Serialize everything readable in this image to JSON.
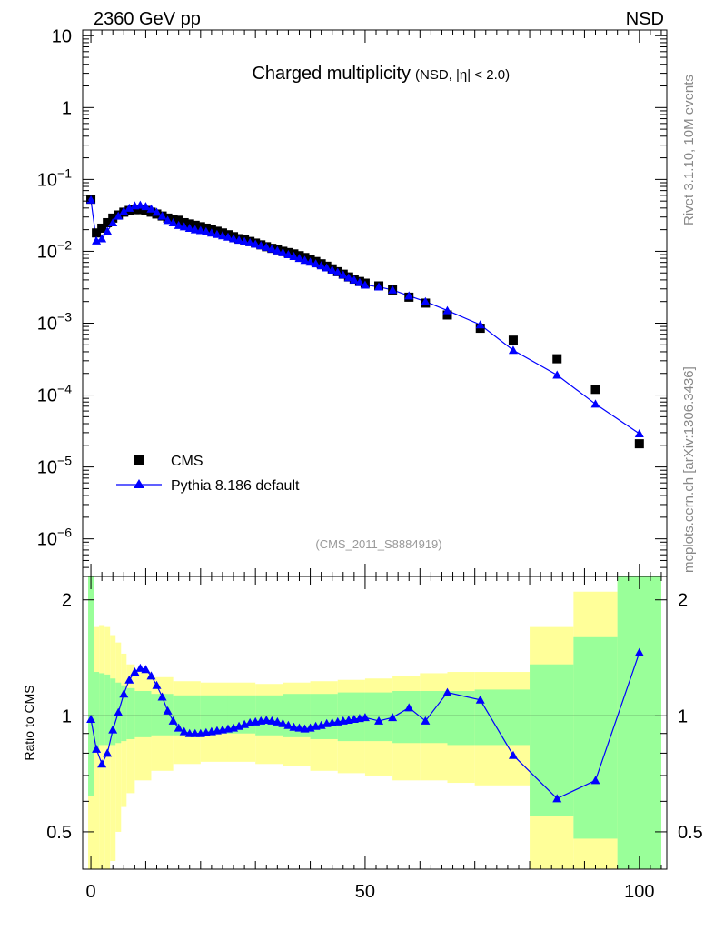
{
  "header": {
    "energy_label": "2360 GeV pp",
    "process_label": "NSD",
    "side_top": "Rivet 3.1.10,  10M events",
    "side_bottom": "mcplots.cern.ch [arXiv:1306.3436]"
  },
  "chart_data": [
    {
      "type": "scatter",
      "title": "Charged multiplicity",
      "subtitle": "(NSD, |η| < 2.0)",
      "annotation": "(CMS_2011_S8884919)",
      "yscale": "log",
      "xlim": [
        -1.5,
        105
      ],
      "ylim": [
        3e-07,
        12
      ],
      "yticklabels": [
        "10",
        "1",
        "10^-1",
        "10^-2",
        "10^-3",
        "10^-4",
        "10^-5",
        "10^-6"
      ],
      "legend_position": "bottom-left",
      "series": [
        {
          "name": "CMS",
          "marker": "square",
          "color": "#000000",
          "x": [
            0,
            1,
            2,
            3,
            4,
            5,
            6,
            7,
            8,
            9,
            10,
            11,
            12,
            13,
            14,
            15,
            16,
            17,
            18,
            19,
            20,
            21,
            22,
            23,
            24,
            25,
            26,
            27,
            28,
            29,
            30,
            31,
            32,
            33,
            34,
            35,
            36,
            37,
            38,
            39,
            40,
            41,
            42,
            43,
            44,
            45,
            46,
            47,
            48,
            49,
            50,
            52.5,
            55,
            58,
            61,
            65,
            71,
            77,
            85,
            92,
            100
          ],
          "y": [
            0.053,
            0.018,
            0.021,
            0.025,
            0.029,
            0.032,
            0.035,
            0.037,
            0.038,
            0.038,
            0.037,
            0.035,
            0.033,
            0.031,
            0.029,
            0.028,
            0.027,
            0.025,
            0.024,
            0.023,
            0.022,
            0.021,
            0.02,
            0.019,
            0.018,
            0.017,
            0.016,
            0.015,
            0.0145,
            0.0137,
            0.013,
            0.0123,
            0.0116,
            0.011,
            0.0105,
            0.01,
            0.0096,
            0.0092,
            0.0087,
            0.0082,
            0.0077,
            0.0072,
            0.0067,
            0.0062,
            0.0057,
            0.0052,
            0.0048,
            0.0044,
            0.0041,
            0.0038,
            0.0036,
            0.0033,
            0.0029,
            0.0023,
            0.0019,
            0.0013,
            0.00085,
            0.00058,
            0.00032,
            0.00012,
            2.1e-05
          ]
        },
        {
          "name": "Pythia 8.186 default",
          "marker": "triangle",
          "color": "#0000ff",
          "x": [
            0,
            1,
            2,
            3,
            4,
            5,
            6,
            7,
            8,
            9,
            10,
            11,
            12,
            13,
            14,
            15,
            16,
            17,
            18,
            19,
            20,
            21,
            22,
            23,
            24,
            25,
            26,
            27,
            28,
            29,
            30,
            31,
            32,
            33,
            34,
            35,
            36,
            37,
            38,
            39,
            40,
            41,
            42,
            43,
            44,
            45,
            46,
            47,
            48,
            49,
            50,
            52.5,
            55,
            58,
            61,
            65,
            71,
            77,
            85,
            92,
            100
          ],
          "y": [
            0.052,
            0.014,
            0.015,
            0.019,
            0.025,
            0.031,
            0.036,
            0.04,
            0.043,
            0.044,
            0.042,
            0.039,
            0.035,
            0.031,
            0.027,
            0.025,
            0.023,
            0.022,
            0.021,
            0.02,
            0.0195,
            0.0188,
            0.018,
            0.0172,
            0.0165,
            0.0158,
            0.015,
            0.0143,
            0.0137,
            0.0132,
            0.0126,
            0.012,
            0.0114,
            0.0108,
            0.0102,
            0.0096,
            0.009,
            0.0085,
            0.008,
            0.0075,
            0.0071,
            0.0067,
            0.0063,
            0.0059,
            0.0055,
            0.0051,
            0.0047,
            0.0043,
            0.004,
            0.0037,
            0.0034,
            0.0032,
            0.0029,
            0.0024,
            0.002,
            0.0015,
            0.00095,
            0.00042,
            0.00019,
            7.5e-05,
            2.9e-05
          ]
        }
      ]
    },
    {
      "type": "line",
      "ylabel": "Ratio to CMS",
      "xlim": [
        -1.5,
        105
      ],
      "ylim": [
        0.4,
        2.3
      ],
      "xticklabels": [
        "0",
        "50",
        "100"
      ],
      "yticklabels": [
        "0.5",
        "1",
        "2"
      ],
      "reference_line": 1,
      "band_colors": {
        "outer": "#ffff99",
        "inner": "#99ff99"
      },
      "bands": {
        "x_edges": [
          -0.5,
          0.5,
          1.5,
          2.5,
          3.5,
          4.5,
          5.5,
          6.5,
          8,
          11,
          15,
          20,
          25,
          30,
          35,
          40,
          45,
          50,
          55,
          60,
          65,
          70,
          80,
          88,
          96,
          104
        ],
        "outer_lo": [
          0.28,
          0.25,
          0.3,
          0.32,
          0.42,
          0.5,
          0.58,
          0.63,
          0.68,
          0.72,
          0.75,
          0.76,
          0.76,
          0.75,
          0.74,
          0.72,
          0.71,
          0.7,
          0.68,
          0.68,
          0.67,
          0.66,
          0.28,
          0.2,
          0.2
        ],
        "outer_hi": [
          2.8,
          1.7,
          1.72,
          1.7,
          1.62,
          1.55,
          1.45,
          1.36,
          1.3,
          1.26,
          1.23,
          1.22,
          1.22,
          1.21,
          1.22,
          1.23,
          1.24,
          1.25,
          1.27,
          1.29,
          1.3,
          1.3,
          1.7,
          2.1,
          2.8
        ],
        "inner_lo": [
          0.62,
          0.82,
          0.84,
          0.84,
          0.84,
          0.85,
          0.86,
          0.87,
          0.88,
          0.89,
          0.89,
          0.9,
          0.9,
          0.89,
          0.88,
          0.87,
          0.86,
          0.86,
          0.85,
          0.85,
          0.84,
          0.84,
          0.55,
          0.48,
          0.26
        ],
        "inner_hi": [
          2.8,
          1.3,
          1.29,
          1.28,
          1.25,
          1.22,
          1.2,
          1.18,
          1.16,
          1.14,
          1.13,
          1.13,
          1.13,
          1.13,
          1.14,
          1.14,
          1.15,
          1.15,
          1.16,
          1.16,
          1.16,
          1.17,
          1.36,
          1.6,
          2.3
        ]
      },
      "series": [
        {
          "name": "Pythia 8.186 default",
          "color": "#0000ff",
          "marker": "triangle",
          "x": [
            0,
            1,
            2,
            3,
            4,
            5,
            6,
            7,
            8,
            9,
            10,
            11,
            12,
            13,
            14,
            15,
            16,
            17,
            18,
            19,
            20,
            21,
            22,
            23,
            24,
            25,
            26,
            27,
            28,
            29,
            30,
            31,
            32,
            33,
            34,
            35,
            36,
            37,
            38,
            39,
            40,
            41,
            42,
            43,
            44,
            45,
            46,
            47,
            48,
            49,
            50,
            52.5,
            55,
            58,
            61,
            65,
            71,
            77,
            85,
            92,
            100
          ],
          "y": [
            0.98,
            0.82,
            0.75,
            0.8,
            0.92,
            1.02,
            1.14,
            1.24,
            1.3,
            1.33,
            1.32,
            1.27,
            1.2,
            1.12,
            1.03,
            0.97,
            0.93,
            0.91,
            0.9,
            0.9,
            0.9,
            0.905,
            0.91,
            0.915,
            0.92,
            0.925,
            0.93,
            0.94,
            0.95,
            0.96,
            0.965,
            0.97,
            0.975,
            0.97,
            0.965,
            0.955,
            0.945,
            0.935,
            0.93,
            0.925,
            0.93,
            0.94,
            0.945,
            0.955,
            0.96,
            0.965,
            0.97,
            0.975,
            0.98,
            0.985,
            0.99,
            0.97,
            0.99,
            1.05,
            0.97,
            1.15,
            1.1,
            0.79,
            0.61,
            0.68,
            1.46
          ]
        }
      ]
    }
  ]
}
